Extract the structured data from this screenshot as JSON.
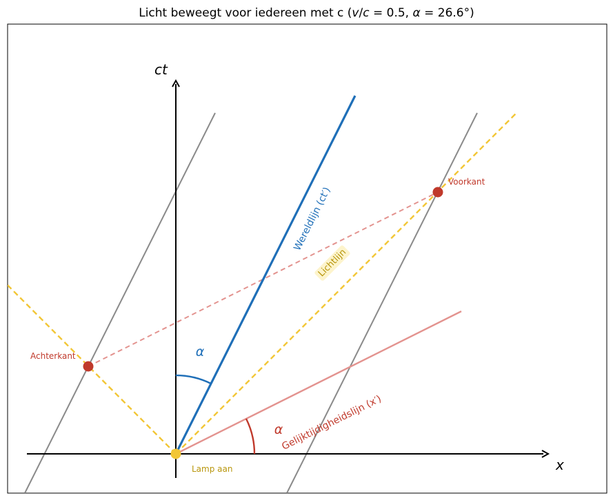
{
  "title": {
    "prefix": "Licht beweegt voor iedereen met c  (",
    "v": "v",
    "slash": "/",
    "c": "c",
    "eq1": " = 0.5,  ",
    "alpha": "α",
    "eq2": " = 26.6°)"
  },
  "axes": {
    "x_label": "x",
    "ct_label": "ct"
  },
  "labels": {
    "worldline": "Wereldlijn (ct′)",
    "lightline": "Lichtlijn",
    "simultaneity": "Gelijktijdigheidslijn (x′)",
    "alpha_top": "α",
    "alpha_bottom": "α",
    "front": "Voorkant",
    "back": "Achterkant",
    "lamp": "Lamp aan"
  },
  "colors": {
    "worldline": "#1f6fb8",
    "light": "#f2c635",
    "simultaneity": "#e3938f",
    "event": "#c0392b",
    "lamp_text": "#b8960c",
    "gray": "#8a8a8a",
    "label_red": "#c0392b"
  }
}
